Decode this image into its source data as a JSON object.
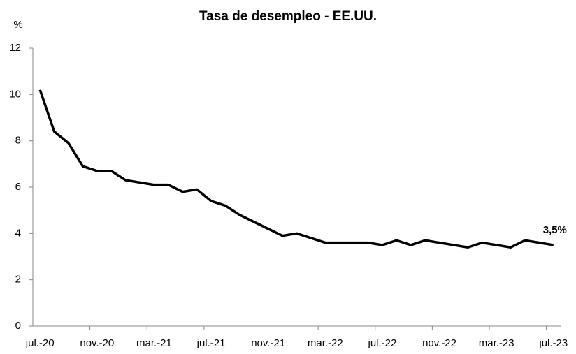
{
  "chart_data": {
    "type": "line",
    "title": "Tasa de desempleo - EE.UU.",
    "y_label": "%",
    "categories": [
      "jul.-20",
      null,
      null,
      null,
      "nov.-20",
      null,
      null,
      null,
      "mar.-21",
      null,
      null,
      null,
      "jul.-21",
      null,
      null,
      null,
      "nov.-21",
      null,
      null,
      null,
      "mar.-22",
      null,
      null,
      null,
      "jul.-22",
      null,
      null,
      null,
      "nov.-22",
      null,
      null,
      null,
      "mar.-23",
      null,
      null,
      null,
      "jul.-23"
    ],
    "series": [
      {
        "color": "#000000",
        "values": [
          10.2,
          8.4,
          7.9,
          6.9,
          6.7,
          6.7,
          6.3,
          6.2,
          6.1,
          6.1,
          5.8,
          5.9,
          5.4,
          5.2,
          4.8,
          4.5,
          4.2,
          3.9,
          4.0,
          3.8,
          3.6,
          3.6,
          3.6,
          3.6,
          3.5,
          3.7,
          3.5,
          3.7,
          3.6,
          3.5,
          3.4,
          3.6,
          3.5,
          3.4,
          3.7,
          3.6,
          3.5
        ],
        "value_labels": [
          null,
          null,
          null,
          null,
          null,
          null,
          null,
          null,
          null,
          null,
          null,
          null,
          null,
          null,
          null,
          null,
          null,
          null,
          null,
          null,
          null,
          null,
          null,
          null,
          null,
          null,
          null,
          null,
          null,
          null,
          null,
          null,
          null,
          null,
          null,
          null,
          "3,5%"
        ]
      }
    ],
    "ylim": [
      0,
      12
    ],
    "yticks": [
      0,
      2,
      4,
      6,
      8,
      10,
      12
    ],
    "grid": false
  }
}
